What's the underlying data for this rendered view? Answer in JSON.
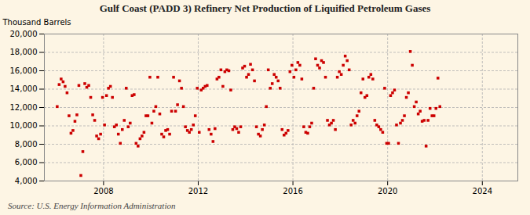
{
  "chart_data": {
    "type": "scatter",
    "title": "Gulf Coast (PADD 3) Refinery Net Production of Liquified Petroleum Gases",
    "ylabel": "Thousand Barrels",
    "annotations": [
      "Source: U.S. Energy Information Administration"
    ],
    "color": "#cc0000",
    "marker": "square",
    "grid": true,
    "xlim": [
      2005.5,
      2025.5
    ],
    "xticks": [
      2008,
      2012,
      2016,
      2020,
      2024
    ],
    "ylim": [
      4000,
      20000
    ],
    "yticks": [
      {
        "value": 4000,
        "label": "4,000"
      },
      {
        "value": 6000,
        "label": "6,000"
      },
      {
        "value": 8000,
        "label": "8,000"
      },
      {
        "value": 10000,
        "label": "10,000"
      },
      {
        "value": 12000,
        "label": "12,000"
      },
      {
        "value": 14000,
        "label": "14,000"
      },
      {
        "value": 16000,
        "label": "16,000"
      },
      {
        "value": 18000,
        "label": "18,000"
      },
      {
        "value": 20000,
        "label": "20,000"
      }
    ],
    "x": [
      2006.042,
      2006.125,
      2006.208,
      2006.292,
      2006.375,
      2006.458,
      2006.542,
      2006.625,
      2006.708,
      2006.792,
      2006.875,
      2006.958,
      2007.042,
      2007.125,
      2007.208,
      2007.292,
      2007.375,
      2007.458,
      2007.542,
      2007.625,
      2007.708,
      2007.792,
      2007.875,
      2007.958,
      2008.042,
      2008.125,
      2008.208,
      2008.292,
      2008.375,
      2008.458,
      2008.542,
      2008.625,
      2008.708,
      2008.792,
      2008.875,
      2008.958,
      2009.042,
      2009.125,
      2009.208,
      2009.292,
      2009.375,
      2009.458,
      2009.542,
      2009.625,
      2009.708,
      2009.792,
      2009.875,
      2009.958,
      2010.042,
      2010.125,
      2010.208,
      2010.292,
      2010.375,
      2010.458,
      2010.542,
      2010.625,
      2010.708,
      2010.792,
      2010.875,
      2010.958,
      2011.042,
      2011.125,
      2011.208,
      2011.292,
      2011.375,
      2011.458,
      2011.542,
      2011.625,
      2011.708,
      2011.792,
      2011.875,
      2011.958,
      2012.042,
      2012.125,
      2012.208,
      2012.292,
      2012.375,
      2012.458,
      2012.542,
      2012.625,
      2012.708,
      2012.792,
      2012.875,
      2012.958,
      2013.042,
      2013.125,
      2013.208,
      2013.292,
      2013.375,
      2013.458,
      2013.542,
      2013.625,
      2013.708,
      2013.792,
      2013.875,
      2013.958,
      2014.042,
      2014.125,
      2014.208,
      2014.292,
      2014.375,
      2014.458,
      2014.542,
      2014.625,
      2014.708,
      2014.792,
      2014.875,
      2014.958,
      2015.042,
      2015.125,
      2015.208,
      2015.292,
      2015.375,
      2015.458,
      2015.542,
      2015.625,
      2015.708,
      2015.792,
      2015.875,
      2015.958,
      2016.042,
      2016.125,
      2016.208,
      2016.292,
      2016.375,
      2016.458,
      2016.542,
      2016.625,
      2016.708,
      2016.792,
      2016.875,
      2016.958,
      2017.042,
      2017.125,
      2017.208,
      2017.292,
      2017.375,
      2017.458,
      2017.542,
      2017.625,
      2017.708,
      2017.792,
      2017.875,
      2017.958,
      2018.042,
      2018.125,
      2018.208,
      2018.292,
      2018.375,
      2018.458,
      2018.542,
      2018.625,
      2018.708,
      2018.792,
      2018.875,
      2018.958,
      2019.042,
      2019.125,
      2019.208,
      2019.292,
      2019.375,
      2019.458,
      2019.542,
      2019.625,
      2019.708,
      2019.792,
      2019.875,
      2019.958,
      2020.042,
      2020.125,
      2020.208,
      2020.292,
      2020.375,
      2020.458,
      2020.542,
      2020.625,
      2020.708,
      2020.792,
      2020.875,
      2020.958,
      2021.042,
      2021.125,
      2021.208,
      2021.292,
      2021.375,
      2021.458,
      2021.542,
      2021.625,
      2021.708,
      2021.792,
      2021.875,
      2021.958,
      2022.042,
      2022.125,
      2022.208
    ],
    "values": [
      12100,
      14500,
      15100,
      14800,
      14300,
      13600,
      11100,
      9200,
      9500,
      10500,
      11200,
      14400,
      4600,
      7200,
      14600,
      14200,
      14400,
      13100,
      11200,
      10600,
      8900,
      8600,
      9100,
      13100,
      10100,
      13300,
      14100,
      14300,
      13100,
      9900,
      10100,
      9100,
      8100,
      9600,
      10600,
      14100,
      9900,
      10300,
      13300,
      13400,
      8100,
      7800,
      8600,
      8900,
      9300,
      11100,
      11100,
      15300,
      10300,
      11600,
      12100,
      15300,
      11300,
      9100,
      8800,
      9500,
      9600,
      9100,
      11600,
      15300,
      11600,
      12300,
      14900,
      14100,
      12100,
      9900,
      9500,
      9300,
      9600,
      10100,
      11100,
      14100,
      9300,
      13900,
      14100,
      14300,
      14400,
      9600,
      9100,
      8300,
      9700,
      15100,
      15300,
      16100,
      14300,
      15900,
      16100,
      16000,
      13900,
      9600,
      9900,
      9700,
      9300,
      9900,
      16300,
      16500,
      15300,
      15600,
      16700,
      16100,
      14900,
      9900,
      9100,
      8900,
      9600,
      10100,
      12100,
      16100,
      14100,
      14600,
      15600,
      15300,
      14900,
      14100,
      9600,
      9000,
      9200,
      9500,
      15900,
      16600,
      15300,
      16100,
      16900,
      16600,
      15100,
      9900,
      9300,
      9200,
      9900,
      10300,
      14100,
      17300,
      16600,
      16300,
      17100,
      16900,
      15300,
      10600,
      10100,
      10300,
      10600,
      9600,
      15300,
      15900,
      15600,
      16600,
      17600,
      17100,
      16100,
      10100,
      10600,
      10300,
      11100,
      11600,
      13600,
      15100,
      13100,
      13300,
      15300,
      15600,
      15100,
      10600,
      10100,
      9900,
      9600,
      9300,
      14100,
      8100,
      8100,
      13300,
      13600,
      13900,
      10100,
      8100,
      10300,
      10600,
      11100,
      13100,
      13600,
      18100,
      16600,
      12100,
      12600,
      11300,
      11600,
      10500,
      10600,
      7800,
      10600,
      11900,
      11100,
      11100,
      11900,
      15200,
      12100
    ]
  }
}
